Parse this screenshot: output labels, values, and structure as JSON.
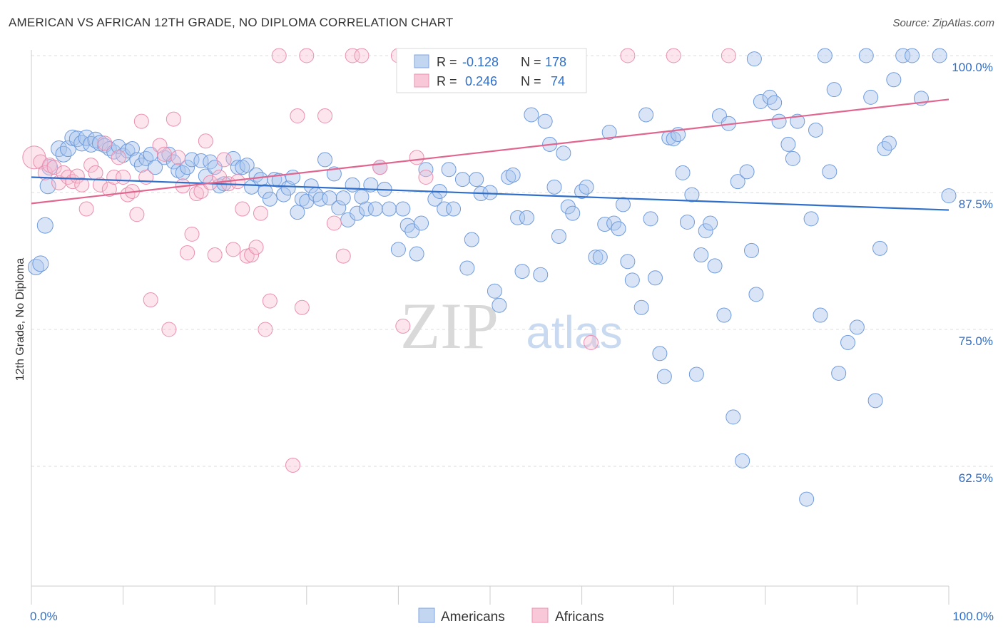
{
  "title": "AMERICAN VS AFRICAN 12TH GRADE, NO DIPLOMA CORRELATION CHART",
  "source": "Source: ZipAtlas.com",
  "watermark": {
    "zip": "ZIP",
    "atlas": "atlas"
  },
  "legend_stats": [
    {
      "r_label": "R =",
      "r_value": "-0.128",
      "n_label": "N =",
      "n_value": "178",
      "color": "#5b8fd6"
    },
    {
      "r_label": "R =",
      "r_value": "0.246",
      "n_label": "N =",
      "n_value": "74",
      "color": "#e87aa0"
    }
  ],
  "chart_data": {
    "type": "scatter",
    "title": "AMERICAN VS AFRICAN 12TH GRADE, NO DIPLOMA CORRELATION CHART",
    "xlabel": "",
    "ylabel": "12th Grade, No Diploma",
    "xlim": [
      0,
      100
    ],
    "ylim": [
      52.5,
      101.5
    ],
    "x_tick_labels": [
      "0.0%",
      "100.0%"
    ],
    "y_ticks": [
      62.5,
      75.0,
      87.5,
      100.0
    ],
    "y_tick_labels": [
      "62.5%",
      "75.0%",
      "87.5%",
      "100.0%"
    ],
    "grid": true,
    "legend_position": "bottom-center",
    "series": [
      {
        "name": "Americans",
        "color": "#5b8fd6",
        "r": -0.128,
        "n": 178,
        "trend": [
          [
            0,
            88.9
          ],
          [
            100,
            85.9
          ]
        ],
        "points": [
          [
            0.5,
            80.7
          ],
          [
            1.0,
            81.0
          ],
          [
            1.5,
            84.5
          ],
          [
            1.8,
            88.1
          ],
          [
            2.0,
            89.8
          ],
          [
            3.0,
            91.5
          ],
          [
            3.5,
            91.0
          ],
          [
            4.0,
            91.5
          ],
          [
            4.5,
            92.5
          ],
          [
            5.0,
            92.4
          ],
          [
            5.5,
            92.0
          ],
          [
            6.0,
            92.5
          ],
          [
            6.5,
            91.9
          ],
          [
            7.0,
            92.3
          ],
          [
            7.5,
            92.0
          ],
          [
            8.0,
            91.8
          ],
          [
            8.5,
            91.5
          ],
          [
            9.0,
            91.2
          ],
          [
            9.5,
            91.7
          ],
          [
            10.0,
            90.9
          ],
          [
            10.5,
            91.3
          ],
          [
            11.0,
            91.5
          ],
          [
            11.5,
            90.5
          ],
          [
            12.0,
            90.0
          ],
          [
            12.5,
            90.6
          ],
          [
            13.0,
            91.0
          ],
          [
            13.5,
            89.8
          ],
          [
            14.5,
            90.7
          ],
          [
            15.0,
            91.0
          ],
          [
            15.5,
            90.3
          ],
          [
            16.0,
            89.5
          ],
          [
            16.5,
            89.3
          ],
          [
            17.0,
            89.8
          ],
          [
            17.5,
            90.5
          ],
          [
            18.5,
            90.4
          ],
          [
            19.0,
            89.0
          ],
          [
            19.5,
            90.3
          ],
          [
            20.0,
            89.8
          ],
          [
            20.5,
            88.1
          ],
          [
            21.0,
            88.3
          ],
          [
            22.0,
            90.6
          ],
          [
            22.5,
            89.8
          ],
          [
            23.0,
            89.8
          ],
          [
            23.5,
            90.0
          ],
          [
            24.0,
            88.0
          ],
          [
            24.5,
            89.1
          ],
          [
            25.0,
            88.7
          ],
          [
            25.5,
            87.6
          ],
          [
            26.0,
            86.9
          ],
          [
            26.5,
            88.7
          ],
          [
            27.0,
            88.6
          ],
          [
            27.5,
            87.3
          ],
          [
            28.0,
            87.9
          ],
          [
            28.5,
            88.9
          ],
          [
            29.0,
            85.7
          ],
          [
            29.5,
            86.9
          ],
          [
            30.0,
            86.7
          ],
          [
            30.5,
            88.1
          ],
          [
            31.0,
            87.3
          ],
          [
            31.5,
            86.9
          ],
          [
            32.0,
            90.5
          ],
          [
            32.5,
            87.0
          ],
          [
            33.0,
            89.2
          ],
          [
            33.5,
            86.1
          ],
          [
            34.0,
            87.0
          ],
          [
            34.5,
            85.0
          ],
          [
            35.0,
            88.2
          ],
          [
            35.5,
            85.6
          ],
          [
            36.0,
            87.1
          ],
          [
            36.5,
            86.0
          ],
          [
            37.0,
            88.2
          ],
          [
            37.5,
            86.0
          ],
          [
            38.0,
            89.8
          ],
          [
            38.5,
            87.8
          ],
          [
            39.0,
            86.0
          ],
          [
            40.0,
            82.3
          ],
          [
            40.5,
            86.0
          ],
          [
            41.0,
            84.5
          ],
          [
            41.5,
            84.0
          ],
          [
            42.0,
            81.9
          ],
          [
            42.5,
            84.7
          ],
          [
            43.0,
            89.6
          ],
          [
            44.0,
            86.9
          ],
          [
            44.5,
            87.6
          ],
          [
            45.0,
            86.0
          ],
          [
            45.5,
            89.6
          ],
          [
            46.0,
            86.0
          ],
          [
            47.0,
            88.7
          ],
          [
            47.5,
            80.6
          ],
          [
            48.0,
            83.2
          ],
          [
            48.5,
            88.7
          ],
          [
            49.0,
            87.4
          ],
          [
            50.0,
            87.5
          ],
          [
            50.5,
            78.5
          ],
          [
            51.0,
            77.2
          ],
          [
            52.0,
            88.9
          ],
          [
            52.5,
            89.1
          ],
          [
            53.0,
            85.2
          ],
          [
            53.5,
            80.3
          ],
          [
            54.0,
            85.2
          ],
          [
            54.5,
            94.6
          ],
          [
            55.5,
            80.0
          ],
          [
            56.0,
            94.0
          ],
          [
            56.5,
            91.9
          ],
          [
            57.0,
            88.0
          ],
          [
            57.5,
            83.5
          ],
          [
            58.0,
            91.1
          ],
          [
            58.5,
            86.2
          ],
          [
            59.0,
            85.6
          ],
          [
            60.0,
            87.6
          ],
          [
            60.5,
            88.0
          ],
          [
            61.5,
            81.6
          ],
          [
            62.0,
            81.6
          ],
          [
            62.5,
            84.6
          ],
          [
            63.0,
            93.0
          ],
          [
            63.5,
            84.7
          ],
          [
            64.0,
            84.2
          ],
          [
            64.5,
            86.4
          ],
          [
            65.0,
            81.2
          ],
          [
            65.5,
            79.5
          ],
          [
            66.5,
            77.0
          ],
          [
            67.0,
            94.6
          ],
          [
            67.5,
            85.1
          ],
          [
            68.0,
            79.7
          ],
          [
            68.5,
            72.8
          ],
          [
            69.0,
            70.7
          ],
          [
            69.5,
            92.5
          ],
          [
            70.0,
            92.4
          ],
          [
            70.5,
            92.8
          ],
          [
            71.0,
            89.3
          ],
          [
            71.5,
            84.8
          ],
          [
            72.0,
            87.3
          ],
          [
            72.5,
            70.9
          ],
          [
            73.0,
            81.8
          ],
          [
            73.5,
            84.0
          ],
          [
            74.0,
            84.7
          ],
          [
            74.5,
            80.8
          ],
          [
            75.0,
            94.5
          ],
          [
            75.5,
            76.3
          ],
          [
            76.0,
            93.8
          ],
          [
            76.5,
            67.0
          ],
          [
            77.0,
            88.5
          ],
          [
            77.5,
            63.0
          ],
          [
            78.0,
            89.4
          ],
          [
            78.5,
            82.2
          ],
          [
            78.8,
            99.7
          ],
          [
            79.0,
            78.2
          ],
          [
            79.5,
            95.8
          ],
          [
            80.5,
            96.2
          ],
          [
            81.0,
            95.7
          ],
          [
            81.5,
            94.0
          ],
          [
            82.5,
            91.9
          ],
          [
            83.0,
            90.6
          ],
          [
            83.5,
            94.0
          ],
          [
            84.5,
            59.5
          ],
          [
            85.0,
            85.1
          ],
          [
            85.5,
            93.2
          ],
          [
            86.0,
            76.3
          ],
          [
            86.5,
            100.0
          ],
          [
            87.0,
            89.4
          ],
          [
            87.5,
            96.9
          ],
          [
            88.0,
            71.0
          ],
          [
            89.0,
            73.8
          ],
          [
            90.0,
            75.2
          ],
          [
            91.0,
            100.0
          ],
          [
            91.5,
            96.2
          ],
          [
            92.0,
            68.5
          ],
          [
            92.5,
            82.4
          ],
          [
            93.0,
            91.5
          ],
          [
            93.5,
            92.0
          ],
          [
            94.0,
            97.8
          ],
          [
            95.0,
            100.0
          ],
          [
            96.0,
            100.0
          ],
          [
            97.0,
            96.1
          ],
          [
            99.0,
            100.0
          ],
          [
            100.0,
            87.2
          ]
        ]
      },
      {
        "name": "Africans",
        "color": "#e87aa0",
        "r": 0.246,
        "n": 74,
        "trend": [
          [
            0,
            86.5
          ],
          [
            100,
            96.0
          ]
        ],
        "points": [
          [
            0.3,
            90.7
          ],
          [
            1.0,
            90.3
          ],
          [
            1.5,
            89.3
          ],
          [
            2.0,
            90.0
          ],
          [
            2.5,
            89.8
          ],
          [
            3.0,
            88.4
          ],
          [
            3.5,
            89.3
          ],
          [
            4.0,
            88.9
          ],
          [
            4.5,
            88.5
          ],
          [
            5.0,
            89.0
          ],
          [
            5.5,
            88.2
          ],
          [
            6.0,
            86.0
          ],
          [
            6.5,
            90.0
          ],
          [
            7.0,
            89.3
          ],
          [
            7.5,
            88.2
          ],
          [
            8.0,
            92.0
          ],
          [
            8.5,
            87.8
          ],
          [
            9.0,
            88.9
          ],
          [
            9.5,
            90.7
          ],
          [
            10.0,
            88.9
          ],
          [
            10.5,
            87.3
          ],
          [
            11.0,
            87.6
          ],
          [
            11.5,
            85.5
          ],
          [
            12.0,
            94.0
          ],
          [
            12.5,
            88.9
          ],
          [
            13.0,
            77.7
          ],
          [
            14.0,
            91.8
          ],
          [
            14.5,
            91.0
          ],
          [
            15.0,
            75.0
          ],
          [
            15.5,
            94.2
          ],
          [
            16.0,
            90.7
          ],
          [
            16.5,
            88.1
          ],
          [
            17.0,
            82.0
          ],
          [
            17.5,
            83.7
          ],
          [
            18.0,
            87.4
          ],
          [
            18.5,
            87.6
          ],
          [
            19.0,
            92.2
          ],
          [
            19.5,
            88.4
          ],
          [
            20.0,
            81.8
          ],
          [
            20.5,
            88.9
          ],
          [
            21.0,
            90.5
          ],
          [
            21.5,
            88.3
          ],
          [
            22.0,
            82.3
          ],
          [
            22.5,
            88.5
          ],
          [
            23.0,
            86.0
          ],
          [
            23.5,
            81.7
          ],
          [
            24.0,
            81.8
          ],
          [
            24.5,
            82.5
          ],
          [
            25.0,
            85.6
          ],
          [
            25.5,
            75.0
          ],
          [
            26.0,
            77.6
          ],
          [
            27.0,
            100.0
          ],
          [
            28.5,
            62.6
          ],
          [
            29.0,
            94.5
          ],
          [
            29.5,
            77.0
          ],
          [
            30.0,
            100.0
          ],
          [
            32.0,
            94.5
          ],
          [
            33.0,
            84.7
          ],
          [
            34.0,
            81.7
          ],
          [
            35.0,
            100.0
          ],
          [
            36.0,
            100.0
          ],
          [
            38.0,
            89.8
          ],
          [
            40.0,
            100.0
          ],
          [
            40.5,
            75.3
          ],
          [
            42.0,
            90.7
          ],
          [
            43.0,
            88.9
          ],
          [
            48.0,
            100.0
          ],
          [
            50.0,
            100.0
          ],
          [
            54.0,
            100.0
          ],
          [
            56.0,
            99.3
          ],
          [
            61.0,
            73.8
          ],
          [
            65.0,
            100.0
          ],
          [
            70.0,
            100.0
          ],
          [
            76.0,
            100.0
          ]
        ]
      }
    ]
  }
}
